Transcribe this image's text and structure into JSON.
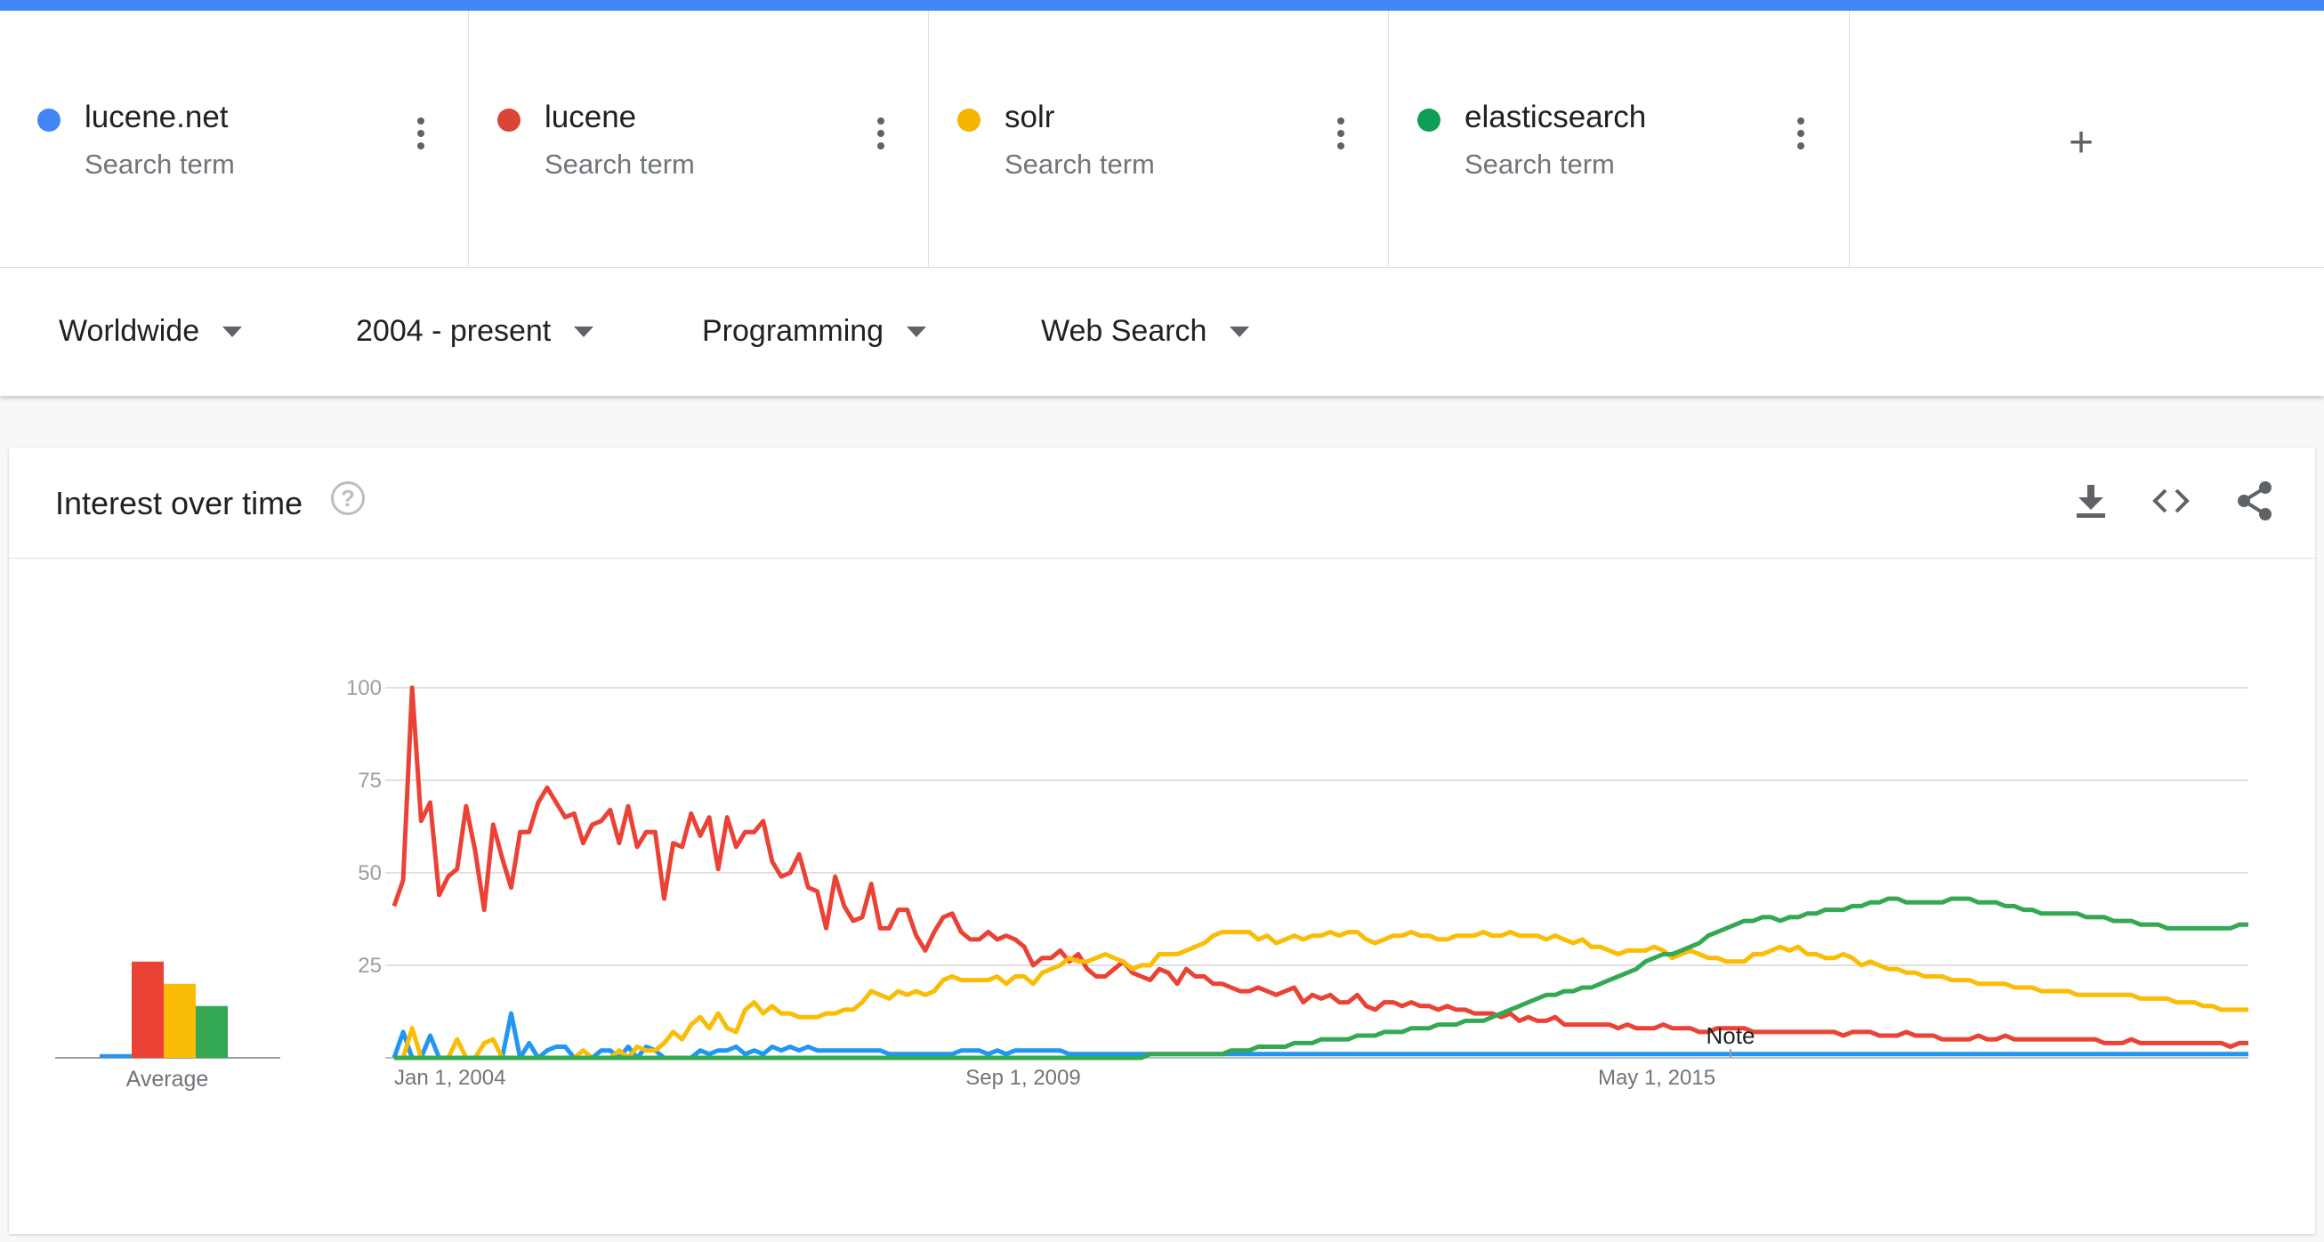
{
  "terms": [
    {
      "name": "lucene.net",
      "subtitle": "Search term",
      "color": "#4285f4"
    },
    {
      "name": "lucene",
      "subtitle": "Search term",
      "color": "#db4437"
    },
    {
      "name": "solr",
      "subtitle": "Search term",
      "color": "#f4b400"
    },
    {
      "name": "elasticsearch",
      "subtitle": "Search term",
      "color": "#0f9d58"
    }
  ],
  "add_term_label": "+",
  "filters": {
    "region": "Worldwide",
    "time_range": "2004 - present",
    "category": "Programming",
    "search_type": "Web Search"
  },
  "card": {
    "title": "Interest over time",
    "help_icon": "?",
    "icons": [
      "download-icon",
      "embed-code-icon",
      "share-icon"
    ]
  },
  "chart_data": {
    "type": "line",
    "x_tick_labels": [
      "Jan 1, 2004",
      "Sep 1, 2009",
      "May 1, 2015"
    ],
    "y_tick_labels": [
      "100",
      "75",
      "50",
      "25"
    ],
    "ylim": [
      0,
      100
    ],
    "grid": true,
    "annotation": "Note",
    "average_label": "Average",
    "averages": [
      {
        "term": "lucene.net",
        "value": 1
      },
      {
        "term": "lucene",
        "value": 26
      },
      {
        "term": "solr",
        "value": 20
      },
      {
        "term": "elasticsearch",
        "value": 14
      }
    ],
    "series": [
      {
        "name": "lucene.net",
        "color": "#2196f3",
        "values": [
          0,
          7,
          0,
          0,
          6,
          0,
          0,
          0,
          0,
          0,
          0,
          0,
          0,
          12,
          0,
          4,
          0,
          2,
          3,
          3,
          0,
          0,
          0,
          2,
          2,
          0,
          3,
          0,
          3,
          2,
          0,
          0,
          0,
          0,
          2,
          1,
          2,
          2,
          3,
          1,
          2,
          1,
          3,
          2,
          3,
          2,
          3,
          2,
          2,
          2,
          2,
          2,
          2,
          2,
          2,
          1,
          1,
          1,
          1,
          1,
          1,
          1,
          1,
          2,
          2,
          2,
          1,
          2,
          1,
          2,
          2,
          2,
          2,
          2,
          2,
          1,
          1,
          1,
          1,
          1,
          1,
          1,
          1,
          1,
          1,
          1,
          1,
          1,
          1,
          1,
          1,
          1,
          1,
          1,
          1,
          1,
          1,
          1,
          1,
          1,
          1,
          1,
          1,
          1,
          1,
          1,
          1,
          1,
          1,
          1,
          1,
          1,
          1,
          1,
          1,
          1,
          1,
          1,
          1,
          1,
          1,
          1,
          1,
          1,
          1,
          1,
          1,
          1,
          1,
          1,
          1,
          1,
          1,
          1,
          1,
          1,
          1,
          1,
          1,
          1,
          1,
          1,
          1,
          1,
          1,
          1,
          1,
          1,
          1,
          1,
          1,
          1,
          1,
          1,
          1,
          1,
          1,
          1,
          1,
          1,
          1,
          1,
          1,
          1,
          1,
          1,
          1,
          1,
          1,
          1,
          1,
          1,
          1,
          1,
          1,
          1,
          1,
          1,
          1,
          1,
          1,
          1,
          1,
          1,
          1,
          1,
          1,
          1,
          1,
          1,
          1,
          1,
          1,
          1,
          1,
          1,
          1,
          1,
          1,
          1,
          1,
          1,
          1,
          1,
          1,
          1,
          1
        ]
      },
      {
        "name": "lucene",
        "color": "#ea4335",
        "values": [
          41,
          48,
          100,
          64,
          69,
          44,
          49,
          51,
          68,
          56,
          40,
          63,
          54,
          46,
          61,
          61,
          69,
          73,
          69,
          65,
          66,
          58,
          63,
          64,
          67,
          58,
          68,
          57,
          61,
          61,
          43,
          58,
          57,
          66,
          60,
          65,
          51,
          65,
          57,
          61,
          61,
          64,
          53,
          49,
          50,
          55,
          46,
          45,
          35,
          49,
          41,
          37,
          38,
          47,
          35,
          35,
          40,
          40,
          33,
          29,
          34,
          38,
          39,
          34,
          32,
          32,
          34,
          32,
          33,
          32,
          30,
          25,
          27,
          27,
          29,
          26,
          28,
          24,
          22,
          22,
          24,
          26,
          23,
          22,
          21,
          24,
          23,
          20,
          24,
          22,
          22,
          20,
          20,
          19,
          18,
          18,
          19,
          18,
          17,
          18,
          19,
          15,
          17,
          16,
          17,
          15,
          15,
          17,
          14,
          13,
          15,
          15,
          14,
          15,
          14,
          14,
          13,
          14,
          13,
          13,
          12,
          12,
          12,
          11,
          12,
          10,
          11,
          10,
          10,
          11,
          9,
          9,
          9,
          9,
          9,
          9,
          8,
          9,
          8,
          8,
          8,
          9,
          8,
          8,
          8,
          7,
          7,
          8,
          8,
          8,
          8,
          7,
          7,
          7,
          7,
          7,
          7,
          7,
          7,
          7,
          7,
          6,
          7,
          7,
          7,
          6,
          6,
          6,
          7,
          6,
          6,
          6,
          5,
          5,
          5,
          5,
          6,
          5,
          5,
          6,
          5,
          5,
          5,
          5,
          5,
          5,
          5,
          5,
          5,
          5,
          4,
          4,
          4,
          5,
          4,
          4,
          4,
          4,
          4,
          4,
          4,
          4,
          4,
          4,
          3,
          4,
          4
        ]
      },
      {
        "name": "solr",
        "color": "#fbbc05",
        "values": [
          0,
          0,
          8,
          0,
          0,
          0,
          0,
          5,
          0,
          0,
          4,
          5,
          0,
          0,
          0,
          0,
          0,
          0,
          0,
          0,
          0,
          2,
          0,
          0,
          0,
          2,
          0,
          3,
          2,
          2,
          4,
          7,
          5,
          9,
          11,
          8,
          12,
          8,
          7,
          13,
          15,
          12,
          14,
          12,
          12,
          11,
          11,
          11,
          12,
          12,
          13,
          13,
          15,
          18,
          17,
          16,
          18,
          17,
          18,
          17,
          18,
          21,
          22,
          21,
          21,
          21,
          21,
          22,
          20,
          22,
          22,
          20,
          23,
          24,
          25,
          27,
          26,
          26,
          27,
          28,
          27,
          26,
          24,
          25,
          25,
          28,
          28,
          28,
          29,
          30,
          31,
          33,
          34,
          34,
          34,
          34,
          32,
          33,
          31,
          32,
          33,
          32,
          33,
          33,
          34,
          33,
          34,
          34,
          32,
          31,
          32,
          33,
          33,
          34,
          33,
          33,
          32,
          32,
          33,
          33,
          33,
          34,
          33,
          33,
          34,
          33,
          33,
          33,
          32,
          33,
          32,
          31,
          32,
          30,
          30,
          29,
          28,
          29,
          29,
          29,
          30,
          29,
          27,
          28,
          29,
          28,
          27,
          27,
          26,
          26,
          26,
          28,
          28,
          29,
          30,
          29,
          30,
          28,
          28,
          27,
          27,
          28,
          27,
          25,
          26,
          25,
          24,
          24,
          23,
          23,
          22,
          22,
          22,
          21,
          21,
          21,
          20,
          20,
          20,
          20,
          19,
          19,
          19,
          18,
          18,
          18,
          18,
          17,
          17,
          17,
          17,
          17,
          17,
          17,
          16,
          16,
          16,
          16,
          15,
          15,
          15,
          14,
          14,
          13,
          13,
          13,
          13
        ]
      },
      {
        "name": "elasticsearch",
        "color": "#34a853",
        "values": [
          0,
          0,
          0,
          0,
          0,
          0,
          0,
          0,
          0,
          0,
          0,
          0,
          0,
          0,
          0,
          0,
          0,
          0,
          0,
          0,
          0,
          0,
          0,
          0,
          0,
          0,
          0,
          0,
          0,
          0,
          0,
          0,
          0,
          0,
          0,
          0,
          0,
          0,
          0,
          0,
          0,
          0,
          0,
          0,
          0,
          0,
          0,
          0,
          0,
          0,
          0,
          0,
          0,
          0,
          0,
          0,
          0,
          0,
          0,
          0,
          0,
          0,
          0,
          0,
          0,
          0,
          0,
          0,
          0,
          0,
          0,
          0,
          0,
          0,
          0,
          0,
          0,
          0,
          0,
          0,
          0,
          0,
          0,
          0,
          1,
          1,
          1,
          1,
          1,
          1,
          1,
          1,
          1,
          2,
          2,
          2,
          3,
          3,
          3,
          3,
          4,
          4,
          4,
          5,
          5,
          5,
          5,
          6,
          6,
          6,
          7,
          7,
          7,
          8,
          8,
          8,
          9,
          9,
          9,
          10,
          10,
          10,
          11,
          12,
          13,
          14,
          15,
          16,
          17,
          17,
          18,
          18,
          19,
          19,
          20,
          21,
          22,
          23,
          24,
          26,
          27,
          28,
          28,
          29,
          30,
          31,
          33,
          34,
          35,
          36,
          37,
          37,
          38,
          38,
          37,
          38,
          38,
          39,
          39,
          40,
          40,
          40,
          41,
          41,
          42,
          42,
          43,
          43,
          42,
          42,
          42,
          42,
          42,
          43,
          43,
          43,
          42,
          42,
          42,
          41,
          41,
          40,
          40,
          39,
          39,
          39,
          39,
          39,
          38,
          38,
          38,
          37,
          37,
          37,
          36,
          36,
          36,
          35,
          35,
          35,
          35,
          35,
          35,
          35,
          35,
          36,
          36
        ]
      }
    ]
  }
}
